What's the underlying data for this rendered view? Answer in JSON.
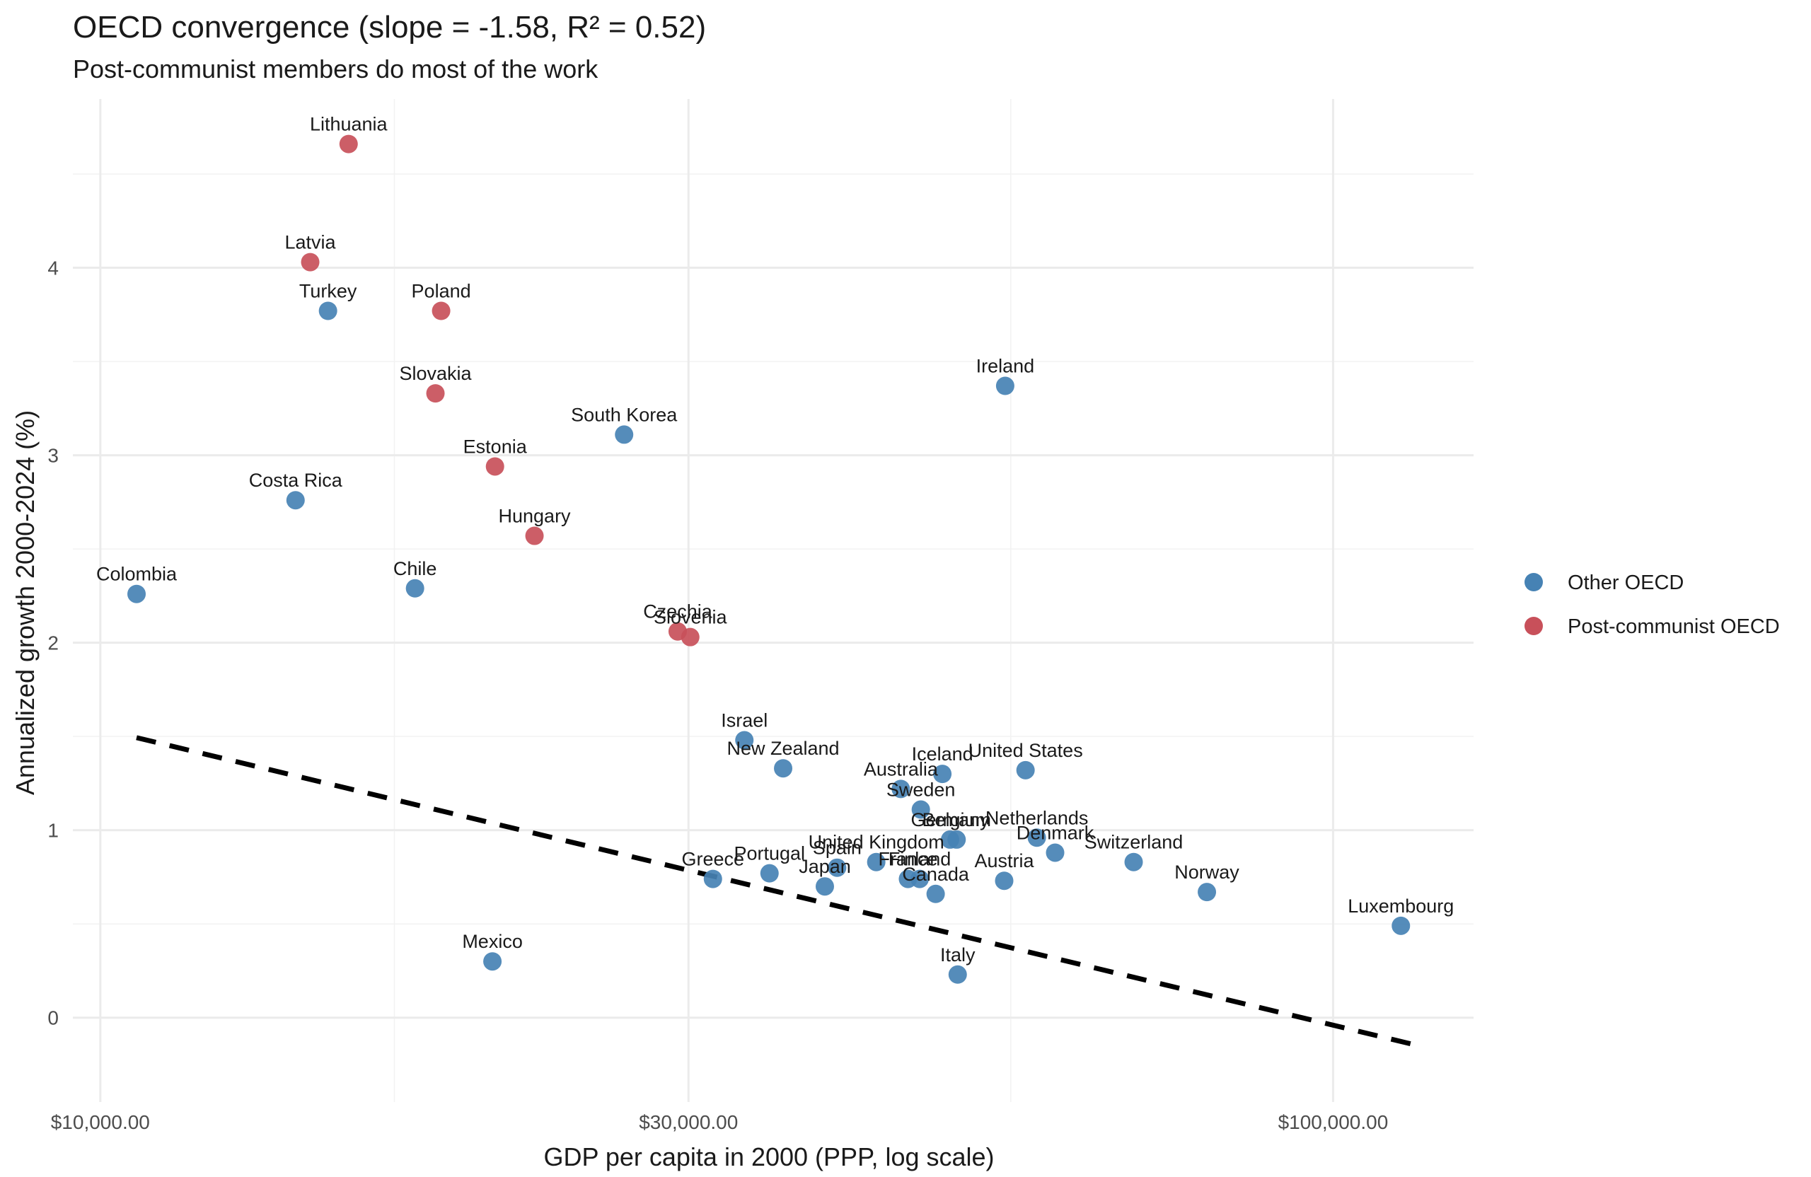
{
  "chart_data": {
    "type": "scatter",
    "title": "OECD convergence (slope = -1.58, R² = 0.52)",
    "subtitle": "Post-communist members do most of the work",
    "xlabel": "GDP per capita in 2000 (PPP, log scale)",
    "ylabel": "Annualized growth 2000-2024 (%)",
    "x_scale": "log10",
    "xlim": [
      9500,
      130000
    ],
    "ylim": [
      -0.45,
      4.9
    ],
    "x_ticks": [
      {
        "value": 10000,
        "label": "$10,000.00"
      },
      {
        "value": 30000,
        "label": "$30,000.00"
      },
      {
        "value": 100000,
        "label": "$100,000.00"
      }
    ],
    "x_minor_ticks": [
      17320,
      54770
    ],
    "y_ticks": [
      {
        "value": 0,
        "label": "0"
      },
      {
        "value": 1,
        "label": "1"
      },
      {
        "value": 2,
        "label": "2"
      },
      {
        "value": 3,
        "label": "3"
      },
      {
        "value": 4,
        "label": "4"
      }
    ],
    "y_minor_ticks": [
      0.5,
      1.5,
      2.5,
      3.5,
      4.5
    ],
    "grid": true,
    "legend_position": "right",
    "trend_line": {
      "style": "dashed",
      "color": "#000000",
      "slope": -1.58,
      "x_start": 10700,
      "x_end": 116000
    },
    "series": [
      {
        "name": "Other OECD",
        "color": "#4682B4",
        "points": [
          {
            "label": "Colombia",
            "x": 10700,
            "y": 2.26
          },
          {
            "label": "Turkey",
            "x": 15300,
            "y": 3.77
          },
          {
            "label": "Costa Rica",
            "x": 14400,
            "y": 2.76
          },
          {
            "label": "Chile",
            "x": 18000,
            "y": 2.29
          },
          {
            "label": "Mexico",
            "x": 20800,
            "y": 0.3
          },
          {
            "label": "South Korea",
            "x": 26600,
            "y": 3.11
          },
          {
            "label": "Israel",
            "x": 33300,
            "y": 1.48
          },
          {
            "label": "New Zealand",
            "x": 35800,
            "y": 1.33
          },
          {
            "label": "Greece",
            "x": 31400,
            "y": 0.74
          },
          {
            "label": "Portugal",
            "x": 34900,
            "y": 0.77
          },
          {
            "label": "Japan",
            "x": 38700,
            "y": 0.7
          },
          {
            "label": "Spain",
            "x": 39600,
            "y": 0.8
          },
          {
            "label": "United Kingdom",
            "x": 42600,
            "y": 0.83
          },
          {
            "label": "Australia",
            "x": 44600,
            "y": 1.22
          },
          {
            "label": "Sweden",
            "x": 46300,
            "y": 1.11
          },
          {
            "label": "France",
            "x": 45200,
            "y": 0.74
          },
          {
            "label": "Finland",
            "x": 46200,
            "y": 0.74
          },
          {
            "label": "Canada",
            "x": 47600,
            "y": 0.66
          },
          {
            "label": "Iceland",
            "x": 48200,
            "y": 1.3
          },
          {
            "label": "Germany",
            "x": 48900,
            "y": 0.95
          },
          {
            "label": "Belgium",
            "x": 49500,
            "y": 0.95
          },
          {
            "label": "Italy",
            "x": 49600,
            "y": 0.23
          },
          {
            "label": "Ireland",
            "x": 54200,
            "y": 3.37
          },
          {
            "label": "Austria",
            "x": 54100,
            "y": 0.73
          },
          {
            "label": "United States",
            "x": 56300,
            "y": 1.32
          },
          {
            "label": "Netherlands",
            "x": 57500,
            "y": 0.96
          },
          {
            "label": "Denmark",
            "x": 59500,
            "y": 0.88
          },
          {
            "label": "Switzerland",
            "x": 68900,
            "y": 0.83
          },
          {
            "label": "Norway",
            "x": 79000,
            "y": 0.67
          },
          {
            "label": "Luxembourg",
            "x": 113500,
            "y": 0.49
          }
        ]
      },
      {
        "name": "Post-communist OECD",
        "color": "#C8505A",
        "points": [
          {
            "label": "Lithuania",
            "x": 15900,
            "y": 4.66
          },
          {
            "label": "Latvia",
            "x": 14800,
            "y": 4.03
          },
          {
            "label": "Poland",
            "x": 18900,
            "y": 3.77
          },
          {
            "label": "Slovakia",
            "x": 18700,
            "y": 3.33
          },
          {
            "label": "Estonia",
            "x": 20900,
            "y": 2.94
          },
          {
            "label": "Hungary",
            "x": 22500,
            "y": 2.57
          },
          {
            "label": "Czechia",
            "x": 29400,
            "y": 2.06
          },
          {
            "label": "Slovenia",
            "x": 30100,
            "y": 2.03
          }
        ]
      }
    ]
  }
}
